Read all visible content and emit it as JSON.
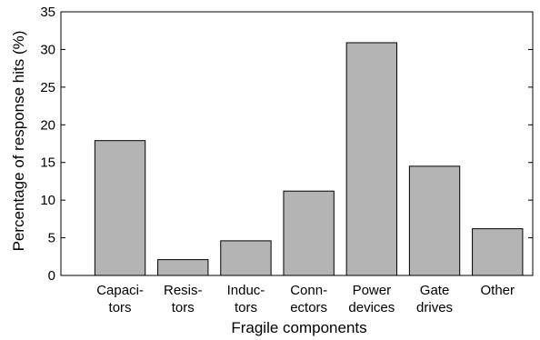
{
  "chart_data": {
    "type": "bar",
    "categories": [
      [
        "Capaci-",
        "tors"
      ],
      [
        "Resis-",
        "tors"
      ],
      [
        "Induc-",
        "tors"
      ],
      [
        "Conn-",
        "ectors"
      ],
      [
        "Power",
        "devices"
      ],
      [
        "Gate",
        "drives"
      ],
      [
        "Other"
      ]
    ],
    "values": [
      17.9,
      2.1,
      4.6,
      11.2,
      30.9,
      14.5,
      6.2
    ],
    "title": "",
    "xlabel": "Fragile components",
    "ylabel": "Percentage of response hits (%)",
    "ylim": [
      0,
      35
    ],
    "yticks": [
      0,
      5,
      10,
      15,
      20,
      25,
      30,
      35
    ],
    "grid": false,
    "bar_color": "#b4b4b4",
    "edge_color": "#000000"
  }
}
